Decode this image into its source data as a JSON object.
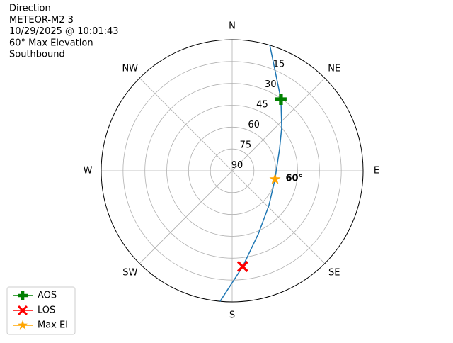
{
  "chart_data": {
    "type": "polar",
    "title_lines": [
      "Direction",
      "METEOR-M2 3",
      "10/29/2025 @ 10:01:43",
      "60° Max Elevation",
      "Southbound"
    ],
    "directions": [
      {
        "label": "N",
        "azimuth": 0
      },
      {
        "label": "NE",
        "azimuth": 45
      },
      {
        "label": "E",
        "azimuth": 90
      },
      {
        "label": "SE",
        "azimuth": 135
      },
      {
        "label": "S",
        "azimuth": 180
      },
      {
        "label": "SW",
        "azimuth": 225
      },
      {
        "label": "W",
        "azimuth": 270
      },
      {
        "label": "NW",
        "azimuth": 315
      }
    ],
    "rlim": [
      90,
      0
    ],
    "rticks": [
      15,
      30,
      45,
      60,
      75,
      90
    ],
    "grid": true,
    "track": {
      "color": "#1f77b4",
      "azimuth": [
        16.7,
        34.3,
        48.9,
        65.2,
        101.1,
        133.3,
        157.4,
        173.7,
        185.3
      ],
      "elevation": [
        0,
        30.5,
        44.8,
        54.1,
        60,
        55.3,
        43.1,
        23.9,
        0
      ]
    },
    "markers": [
      {
        "name": "AOS",
        "color": "green",
        "marker": "plus",
        "azimuth": 34.3,
        "elevation": 30.5
      },
      {
        "name": "LOS",
        "color": "red",
        "marker": "x",
        "azimuth": 173.7,
        "elevation": 23.9
      },
      {
        "name": "Max El",
        "color": "orange",
        "marker": "star",
        "azimuth": 101.1,
        "elevation": 60
      }
    ],
    "annotation": {
      "text": "60°",
      "azimuth": 101.1,
      "elevation": 60
    },
    "legend": "lower left"
  }
}
